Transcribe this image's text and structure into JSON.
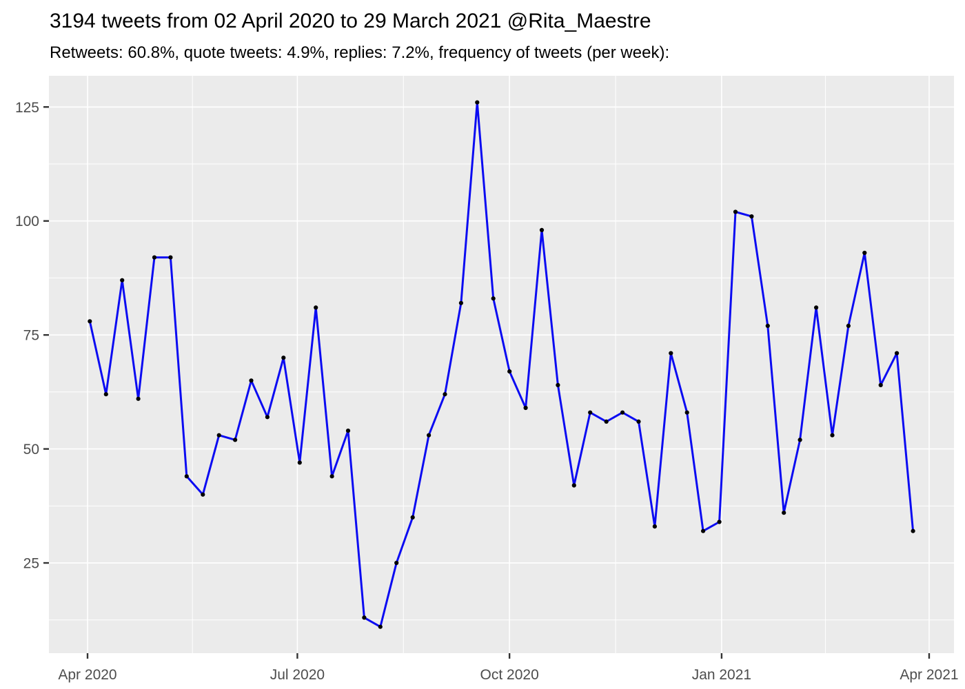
{
  "header": {
    "title": "3194 tweets from 02 April 2020 to 29 March 2021 @Rita_Maestre",
    "subtitle": "Retweets: 60.8%, quote tweets: 4.9%, replies: 7.2%, frequency of tweets (per week):"
  },
  "chart_data": {
    "type": "line",
    "title": "3194 tweets from 02 April 2020 to 29 March 2021 @Rita_Maestre",
    "subtitle": "Retweets: 60.8%, quote tweets: 4.9%, replies: 7.2%, frequency of tweets (per week):",
    "xlabel": "",
    "ylabel": "",
    "x_unit_days_since_01_apr_2020": true,
    "x": [
      1,
      8,
      15,
      22,
      29,
      36,
      43,
      50,
      57,
      64,
      71,
      78,
      85,
      92,
      99,
      106,
      113,
      120,
      127,
      134,
      141,
      148,
      155,
      162,
      169,
      176,
      183,
      190,
      197,
      204,
      211,
      218,
      225,
      232,
      239,
      246,
      253,
      260,
      267,
      274,
      281,
      288,
      295,
      302,
      309,
      316,
      323,
      330,
      337,
      344,
      351,
      358
    ],
    "values": [
      78,
      62,
      87,
      61,
      92,
      92,
      44,
      40,
      53,
      52,
      65,
      57,
      70,
      47,
      81,
      44,
      54,
      13,
      11,
      25,
      35,
      53,
      62,
      82,
      126,
      83,
      67,
      59,
      98,
      64,
      42,
      58,
      56,
      58,
      56,
      33,
      71,
      58,
      32,
      34,
      102,
      101,
      77,
      36,
      52,
      81,
      53,
      77,
      93,
      64,
      71,
      32
    ],
    "total_tweets": 3194,
    "x_ticks": [
      {
        "label": "Apr 2020",
        "day": 0
      },
      {
        "label": "Jul 2020",
        "day": 91
      },
      {
        "label": "Oct 2020",
        "day": 183
      },
      {
        "label": "Jan 2021",
        "day": 275
      },
      {
        "label": "Apr 2021",
        "day": 365
      }
    ],
    "y_ticks": [
      25,
      50,
      75,
      100,
      125
    ],
    "y_minor_step": 12.5,
    "xlim": [
      -16.74,
      375.77
    ],
    "ylim": [
      5.21,
      131.84
    ],
    "grid": true,
    "legend": "none",
    "colors": {
      "line": "#0B0BF2",
      "point": "#000000",
      "panel_background": "#EBEBEB",
      "gridline": "#FFFFFF",
      "axis_text": "#4D4D4D",
      "tick_mark": "#333333",
      "title_text": "#000000"
    }
  }
}
